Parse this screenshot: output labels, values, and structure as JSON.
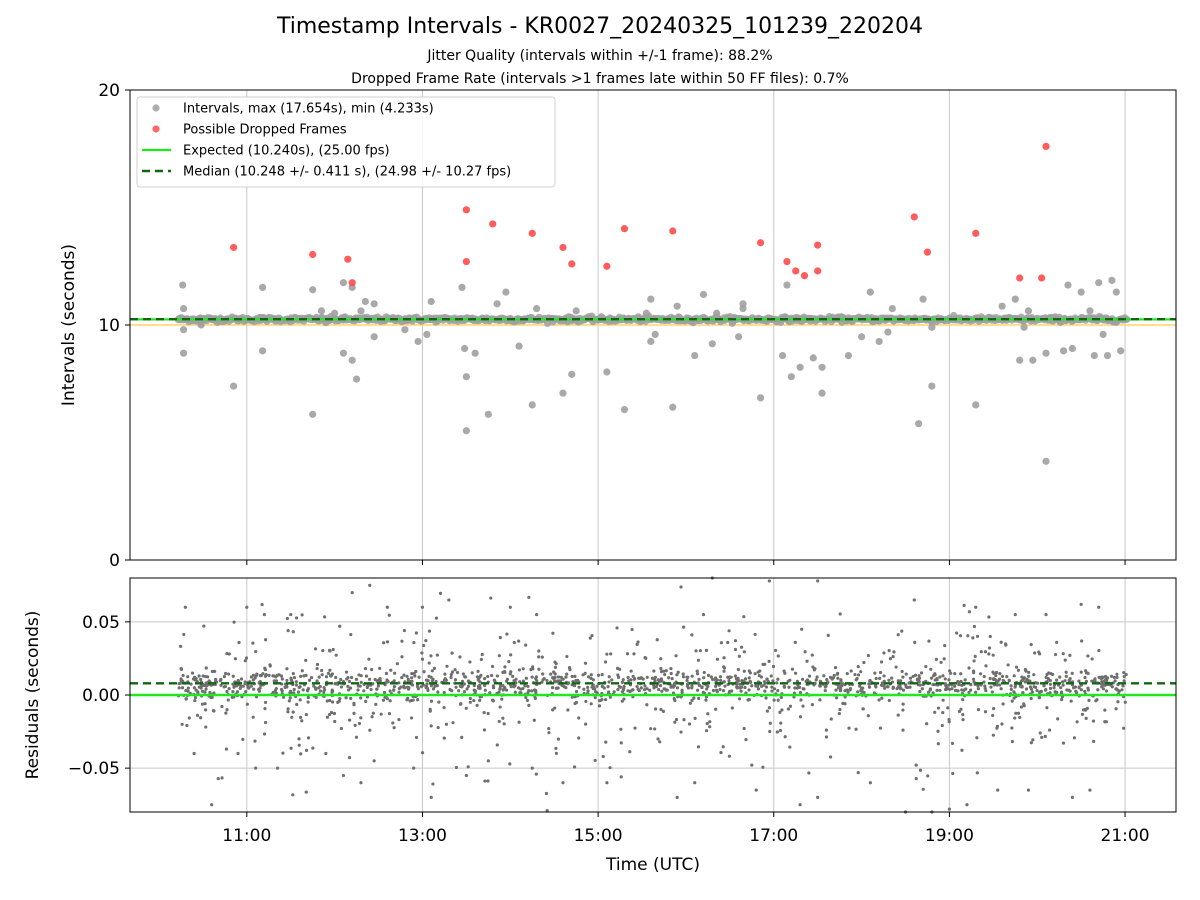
{
  "figure": {
    "title": "Timestamp Intervals - KR0027_20240325_101239_220204",
    "subtitle_1": "Jitter Quality (intervals within +/-1 frame): 88.2%",
    "subtitle_2": "Dropped Frame Rate (intervals >1 frames late within 50 FF files): 0.7%"
  },
  "colors": {
    "intervals": "#a0a0a0",
    "dropped": "#ff4b4b",
    "expected": "#1ee81e",
    "median": "#126612",
    "limit_band": "#ffd36b",
    "residuals": "#6f6f6f",
    "grid": "#c8c8c8"
  },
  "chart_data": [
    {
      "type": "scatter",
      "ylabel": "Intervals (seconds)",
      "xlabel": "",
      "x_unit": "hours (UTC)",
      "xlim": [
        9.67,
        21.58
      ],
      "ylim": [
        0,
        20
      ],
      "yticks": [
        "0",
        "10",
        "20"
      ],
      "xticks": [
        {
          "value": 11,
          "label": "11:00"
        },
        {
          "value": 13,
          "label": "13:00"
        },
        {
          "value": 15,
          "label": "15:00"
        },
        {
          "value": 17,
          "label": "17:00"
        },
        {
          "value": 19,
          "label": "19:00"
        },
        {
          "value": 21,
          "label": "21:00"
        }
      ],
      "grid": "vertical",
      "legend_position": "top-left",
      "legend": [
        {
          "key": "intervals",
          "label": "Intervals, max (17.654s), min (4.233s)",
          "style": "point"
        },
        {
          "key": "dropped",
          "label": "Possible Dropped Frames",
          "style": "point"
        },
        {
          "key": "expected",
          "label": "Expected (10.240s), (25.00 fps)",
          "style": "line"
        },
        {
          "key": "median",
          "label": "Median (10.248 +/- 0.411 s), (24.98 +/- 10.27 fps)",
          "style": "dashed"
        }
      ],
      "expected_value": 10.24,
      "median_value": 10.248,
      "lower_band_value": 10.0,
      "time_range": [
        10.22,
        21.02
      ],
      "series": [
        {
          "key": "intervals",
          "x": [
            10.27,
            10.28,
            10.28,
            10.28,
            10.47,
            10.47,
            10.48,
            10.85,
            11.18,
            11.18,
            11.75,
            11.75,
            11.85,
            11.9,
            12.0,
            12.1,
            12.1,
            12.2,
            12.2,
            12.25,
            12.3,
            12.35,
            12.45,
            12.45,
            12.8,
            12.85,
            12.95,
            13.05,
            13.1,
            13.45,
            13.48,
            13.5,
            13.5,
            13.6,
            13.75,
            13.85,
            13.95,
            14.1,
            14.25,
            14.3,
            14.6,
            14.7,
            14.75,
            15.1,
            15.3,
            15.55,
            15.6,
            15.6,
            15.65,
            15.85,
            15.9,
            16.1,
            16.2,
            16.3,
            16.35,
            16.6,
            16.65,
            16.65,
            16.7,
            16.85,
            17.1,
            17.15,
            17.2,
            17.3,
            17.45,
            17.55,
            17.55,
            17.85,
            18.0,
            18.1,
            18.2,
            18.3,
            18.35,
            18.65,
            18.7,
            18.8,
            18.8,
            19.3,
            19.6,
            19.65,
            19.75,
            19.8,
            19.85,
            19.9,
            19.95,
            20.1,
            20.1,
            20.15,
            20.3,
            20.35,
            20.4,
            20.5,
            20.6,
            20.65,
            20.7,
            20.75,
            20.8,
            20.85,
            20.9,
            20.95
          ],
          "y": [
            11.7,
            10.7,
            9.8,
            8.8,
            10.1,
            10.3,
            10.0,
            7.4,
            11.6,
            8.9,
            6.2,
            11.5,
            10.6,
            10.1,
            10.5,
            11.8,
            8.8,
            11.6,
            8.5,
            7.7,
            10.6,
            11.0,
            10.9,
            9.5,
            9.8,
            10.3,
            9.3,
            9.6,
            11.0,
            11.6,
            9.0,
            5.5,
            7.8,
            8.8,
            6.2,
            10.9,
            11.4,
            9.1,
            6.6,
            10.7,
            7.1,
            7.9,
            10.6,
            8.0,
            6.4,
            10.5,
            9.3,
            11.1,
            9.6,
            6.5,
            10.8,
            8.7,
            11.3,
            9.2,
            10.5,
            9.5,
            10.9,
            10.7,
            10.2,
            6.9,
            8.7,
            11.7,
            7.8,
            8.2,
            8.6,
            7.1,
            8.2,
            8.7,
            9.5,
            11.4,
            9.3,
            9.7,
            10.7,
            5.8,
            11.1,
            7.4,
            9.9,
            6.6,
            10.8,
            10.2,
            11.1,
            8.5,
            9.9,
            10.6,
            8.5,
            8.8,
            4.2,
            10.2,
            8.9,
            11.7,
            9.0,
            11.4,
            10.6,
            8.7,
            11.8,
            9.6,
            8.7,
            11.9,
            11.4,
            8.9
          ]
        },
        {
          "key": "dropped",
          "x": [
            10.85,
            11.75,
            12.15,
            12.2,
            13.5,
            13.5,
            13.8,
            14.25,
            14.6,
            14.7,
            15.1,
            15.3,
            15.85,
            16.85,
            17.15,
            17.25,
            17.35,
            17.5,
            17.5,
            18.6,
            18.75,
            19.3,
            19.8,
            20.05,
            20.1
          ],
          "y": [
            13.3,
            13.0,
            12.8,
            11.8,
            14.9,
            12.7,
            14.3,
            13.9,
            13.3,
            12.6,
            12.5,
            14.1,
            14.0,
            13.5,
            12.7,
            12.3,
            12.1,
            13.4,
            12.3,
            14.6,
            13.1,
            13.9,
            12.0,
            12.0,
            17.6
          ]
        }
      ]
    },
    {
      "type": "scatter",
      "ylabel": "Residuals (seconds)",
      "xlabel": "Time (UTC)",
      "x_unit": "hours (UTC)",
      "xlim": [
        9.67,
        21.58
      ],
      "ylim": [
        -0.08,
        0.08
      ],
      "yticks": [
        {
          "value": 0.05,
          "label": "0.05"
        },
        {
          "value": 0.0,
          "label": "0.00"
        },
        {
          "value": -0.05,
          "label": "−0.05"
        }
      ],
      "xticks": [
        {
          "value": 11,
          "label": "11:00"
        },
        {
          "value": 13,
          "label": "13:00"
        },
        {
          "value": 15,
          "label": "15:00"
        },
        {
          "value": 17,
          "label": "17:00"
        },
        {
          "value": 19,
          "label": "19:00"
        },
        {
          "value": 21,
          "label": "21:00"
        }
      ],
      "grid": "both",
      "expected_value": 0.0,
      "median_value": 0.008,
      "series": [
        {
          "key": "residuals",
          "x": [
            10.3,
            10.4,
            10.6,
            10.9,
            11.0,
            11.1,
            11.2,
            11.35,
            11.5,
            11.9,
            12.1,
            12.2,
            12.3,
            12.4,
            12.45,
            12.6,
            12.9,
            13.0,
            13.1,
            13.3,
            13.5,
            13.75,
            14.0,
            14.25,
            14.3,
            14.6,
            15.1,
            15.9,
            16.1,
            16.2,
            16.3,
            16.8,
            16.95,
            17.3,
            17.5,
            17.5,
            18.1,
            18.5,
            18.6,
            18.8,
            19.0,
            19.2,
            19.3,
            19.55,
            19.75,
            19.9,
            20.1,
            20.4,
            20.5,
            20.6,
            20.7
          ],
          "y": [
            0.06,
            -0.04,
            -0.075,
            -0.04,
            0.06,
            -0.05,
            0.055,
            -0.05,
            0.055,
            -0.04,
            -0.055,
            0.07,
            -0.06,
            0.075,
            -0.045,
            0.06,
            -0.05,
            0.06,
            -0.07,
            0.065,
            -0.055,
            -0.045,
            0.06,
            -0.05,
            0.055,
            -0.06,
            -0.06,
            -0.07,
            -0.06,
            0.055,
            0.08,
            -0.065,
            0.078,
            -0.075,
            0.078,
            -0.07,
            -0.06,
            -0.08,
            0.065,
            -0.08,
            -0.078,
            -0.075,
            0.06,
            -0.065,
            0.055,
            -0.065,
            0.055,
            -0.07,
            0.062,
            -0.065,
            0.06
          ]
        }
      ]
    }
  ]
}
